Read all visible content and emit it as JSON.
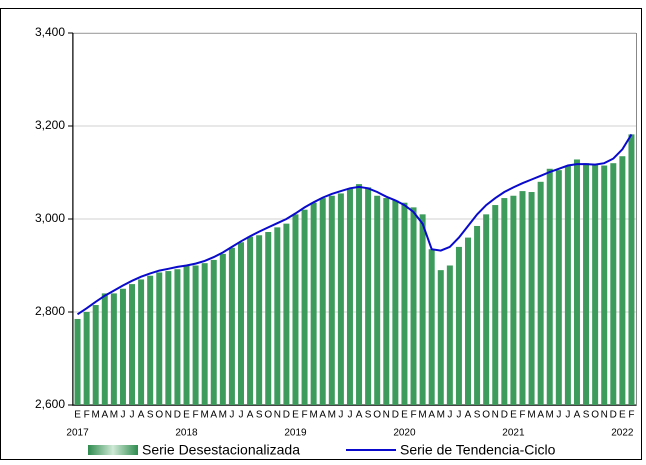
{
  "chart_data": {
    "type": "bar_line",
    "categories": [
      "E",
      "F",
      "M",
      "A",
      "M",
      "J",
      "J",
      "A",
      "S",
      "O",
      "N",
      "D",
      "E",
      "F",
      "M",
      "A",
      "M",
      "J",
      "J",
      "A",
      "S",
      "O",
      "N",
      "D",
      "E",
      "F",
      "M",
      "A",
      "M",
      "J",
      "J",
      "A",
      "S",
      "O",
      "N",
      "D",
      "E",
      "F",
      "M",
      "A",
      "M",
      "J",
      "J",
      "A",
      "S",
      "O",
      "N",
      "D",
      "E",
      "F",
      "M",
      "A",
      "M",
      "J",
      "J",
      "A",
      "S",
      "O",
      "N",
      "D",
      "E",
      "F"
    ],
    "x_groups": [
      "2017",
      "2018",
      "2019",
      "2020",
      "2021",
      "2022"
    ],
    "series": [
      {
        "name": "Serie Desestacionalizada",
        "type": "bar",
        "color": "#3d9b5c",
        "values": [
          2785,
          2800,
          2815,
          2840,
          2840,
          2850,
          2860,
          2870,
          2878,
          2885,
          2888,
          2892,
          2900,
          2900,
          2905,
          2912,
          2925,
          2938,
          2950,
          2962,
          2965,
          2972,
          2982,
          2990,
          3010,
          3020,
          3035,
          3045,
          3050,
          3055,
          3065,
          3075,
          3068,
          3050,
          3045,
          3040,
          3035,
          3025,
          3010,
          2935,
          2890,
          2900,
          2940,
          2960,
          2985,
          3010,
          3030,
          3045,
          3050,
          3060,
          3058,
          3080,
          3108,
          3105,
          3115,
          3128,
          3120,
          3118,
          3115,
          3120,
          3135,
          3182
        ]
      },
      {
        "name": "Serie de Tendencia-Ciclo",
        "type": "line",
        "color": "#0a0acc",
        "values": [
          2795,
          2808,
          2822,
          2835,
          2846,
          2857,
          2867,
          2876,
          2883,
          2889,
          2893,
          2897,
          2900,
          2904,
          2910,
          2918,
          2928,
          2940,
          2952,
          2963,
          2973,
          2982,
          2991,
          3000,
          3012,
          3025,
          3036,
          3046,
          3054,
          3060,
          3066,
          3069,
          3066,
          3058,
          3048,
          3040,
          3030,
          3015,
          2990,
          2935,
          2932,
          2940,
          2960,
          2985,
          3010,
          3030,
          3045,
          3058,
          3068,
          3077,
          3085,
          3093,
          3101,
          3108,
          3115,
          3118,
          3118,
          3117,
          3120,
          3130,
          3150,
          3182
        ]
      }
    ],
    "ylim": [
      2600,
      3400
    ],
    "yticks": [
      {
        "value": 2600,
        "label": "2,600"
      },
      {
        "value": 2800,
        "label": "2,800"
      },
      {
        "value": 3000,
        "label": "3,000"
      },
      {
        "value": 3200,
        "label": "3,200"
      },
      {
        "value": 3400,
        "label": "3,400"
      }
    ],
    "grid": true
  }
}
